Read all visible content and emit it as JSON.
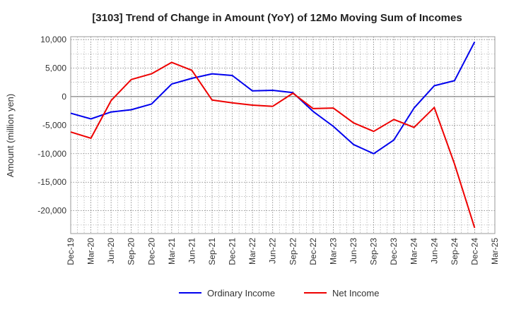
{
  "chart_data": {
    "type": "line",
    "title": "[3103]  Trend of Change in Amount (YoY) of 12Mo Moving Sum of Incomes",
    "xlabel": "",
    "ylabel": "Amount (million yen)",
    "x": [
      "Dec-19",
      "Mar-20",
      "Jun-20",
      "Sep-20",
      "Dec-20",
      "Mar-21",
      "Jun-21",
      "Sep-21",
      "Dec-21",
      "Mar-22",
      "Jun-22",
      "Sep-22",
      "Dec-22",
      "Mar-23",
      "Jun-23",
      "Sep-23",
      "Dec-23",
      "Mar-24",
      "Jun-24",
      "Sep-24",
      "Dec-24",
      "Mar-25"
    ],
    "ylim": [
      -24000,
      10500
    ],
    "yticks": [
      10000,
      5000,
      0,
      -5000,
      -10000,
      -15000,
      -20000
    ],
    "ytick_labels": [
      "10,000",
      "5,000",
      "0",
      "-5,000",
      "-10,000",
      "-15,000",
      "-20,000"
    ],
    "grid": true,
    "legend_position": "bottom",
    "series": [
      {
        "name": "Ordinary Income",
        "color": "#0000ee",
        "values": [
          -2900,
          -3900,
          -2700,
          -2300,
          -1300,
          2200,
          3200,
          4000,
          3700,
          1000,
          1100,
          700,
          -2600,
          -5200,
          -8400,
          -10000,
          -7600,
          -2000,
          1900,
          2800,
          9600,
          null
        ]
      },
      {
        "name": "Net Income",
        "color": "#ee0000",
        "values": [
          -6200,
          -7300,
          -700,
          3000,
          4000,
          6000,
          4600,
          -600,
          -1100,
          -1500,
          -1700,
          600,
          -2100,
          -2000,
          -4600,
          -6100,
          -4000,
          -5400,
          -1900,
          -11800,
          -23000,
          null
        ]
      }
    ]
  }
}
